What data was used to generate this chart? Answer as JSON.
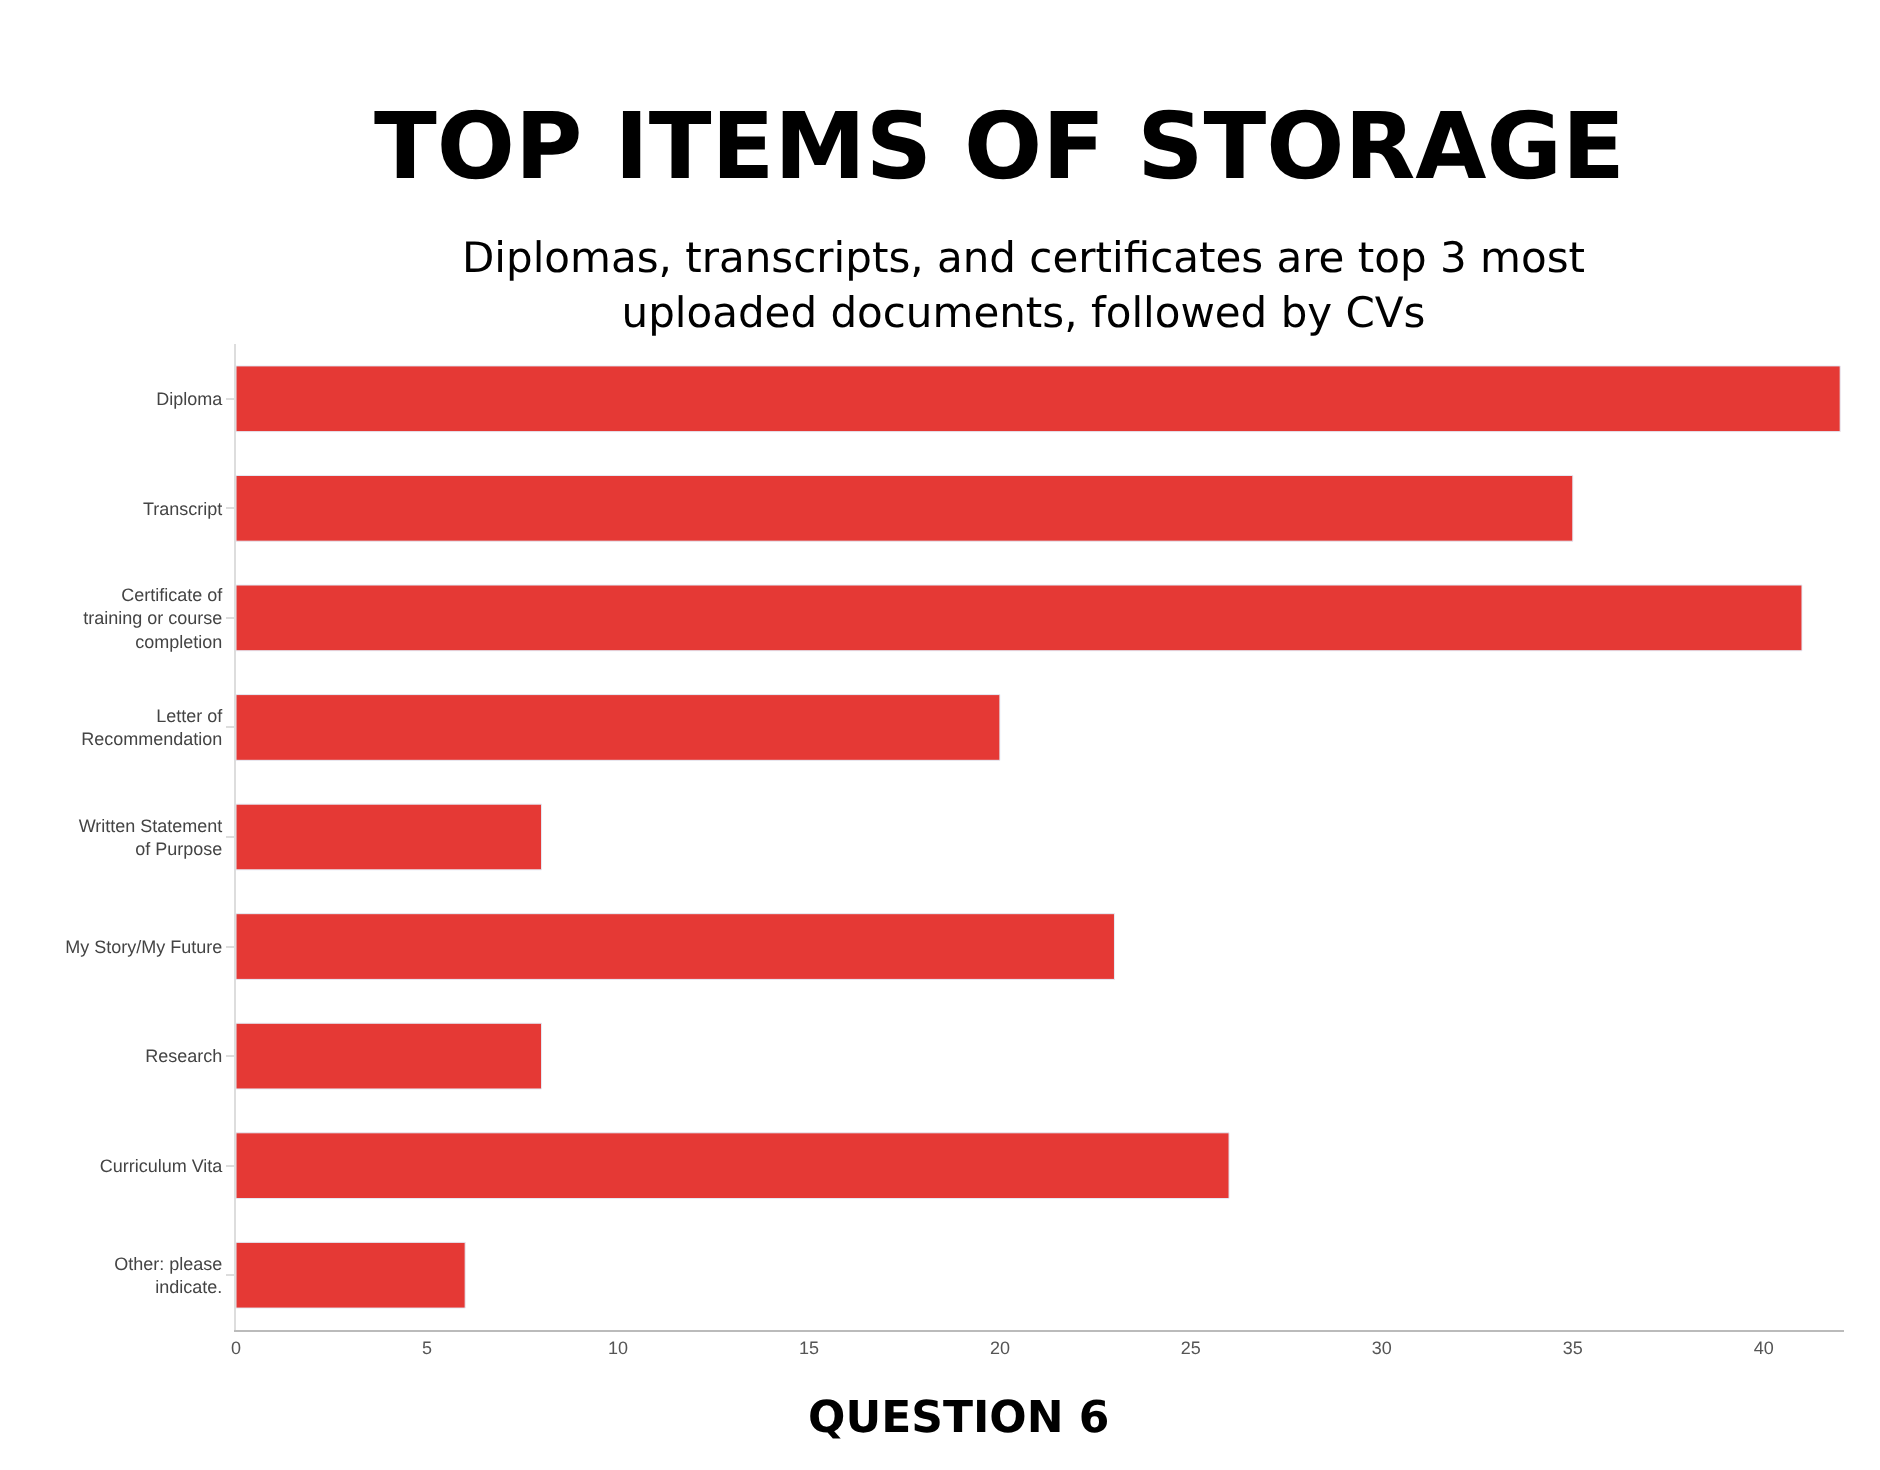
{
  "chart_data": {
    "type": "bar",
    "orientation": "horizontal",
    "title": "TOP ITEMS OF STORAGE",
    "subtitle": "Diplomas, transcripts, and certificates are top 3 most\nuploaded documents, followed by CVs",
    "categories": [
      "Diploma",
      "Transcript",
      "Certificate of\ntraining or course\ncompletion",
      "Letter of\nRecommendation",
      "Written Statement\nof Purpose",
      "My Story/My Future",
      "Research",
      "Curriculum Vita",
      "Other: please\nindicate."
    ],
    "values": [
      42,
      35,
      41,
      20,
      8,
      23,
      8,
      26,
      6
    ],
    "color": "#e53935",
    "xlim": [
      0,
      42.1
    ],
    "xticks": [
      0,
      5,
      10,
      15,
      20,
      25,
      30,
      35,
      40
    ],
    "annotations": [
      "QUESTION 6"
    ]
  }
}
